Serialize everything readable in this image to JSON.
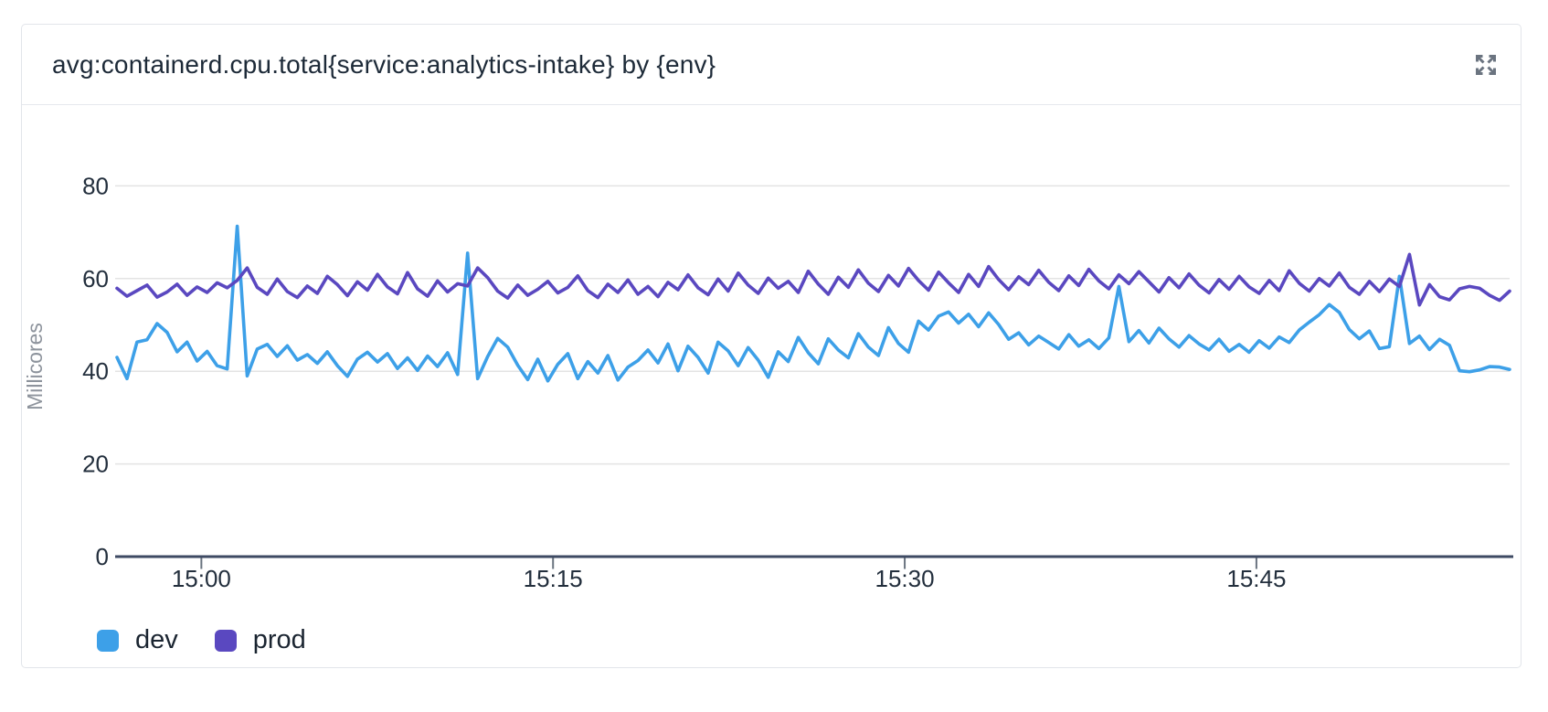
{
  "widget": {
    "title": "avg:containerd.cpu.total{service:analytics-intake} by {env}",
    "expand_icon": "expand-arrows-icon"
  },
  "colors": {
    "background": "#ffffff",
    "card_border": "#e2e5ea",
    "axis_line": "#3e4a63",
    "gridline": "#e3e3e3",
    "tick_mark": "#6a7480",
    "tick_text": "#232f3d",
    "muted_text": "#8d939c",
    "title_text": "#1d2a38",
    "icon": "#6b7480",
    "dev_blue": "#3da0e8",
    "prod_purple": "#5a48c0"
  },
  "chart_data": {
    "type": "line",
    "title": "avg:containerd.cpu.total{service:analytics-intake} by {env}",
    "xlabel": "",
    "ylabel": "Millicores",
    "ylim": [
      0,
      88
    ],
    "y_ticks": [
      0,
      20,
      40,
      60,
      80
    ],
    "x_range_minutes": [
      -3.6,
      55.8
    ],
    "x_ticks": [
      {
        "minute": 0,
        "label": "15:00"
      },
      {
        "minute": 15,
        "label": "15:15"
      },
      {
        "minute": 30,
        "label": "15:30"
      },
      {
        "minute": 45,
        "label": "15:45"
      }
    ],
    "grid": true,
    "legend_position": "bottom",
    "series": [
      {
        "name": "dev",
        "color": "#3da0e8",
        "values": [
          43.0,
          38.4,
          46.3,
          46.8,
          50.3,
          48.4,
          44.2,
          46.3,
          42.2,
          44.3,
          41.2,
          40.5,
          71.3,
          39.0,
          44.8,
          45.8,
          43.2,
          45.5,
          42.4,
          43.6,
          41.7,
          44.2,
          41.2,
          38.9,
          42.6,
          44.1,
          42.0,
          43.8,
          40.6,
          42.9,
          40.2,
          43.3,
          41.0,
          44.0,
          39.3,
          65.5,
          38.4,
          43.2,
          47.1,
          45.2,
          41.3,
          38.2,
          42.6,
          37.9,
          41.5,
          43.8,
          38.4,
          42.1,
          39.6,
          43.4,
          38.1,
          40.9,
          42.3,
          44.6,
          41.8,
          45.9,
          40.1,
          45.4,
          43.0,
          39.6,
          46.3,
          44.4,
          41.2,
          45.1,
          42.4,
          38.7,
          44.2,
          42.1,
          47.3,
          44.0,
          41.6,
          47.0,
          44.6,
          42.9,
          48.1,
          45.2,
          43.4,
          49.4,
          46.0,
          44.1,
          50.8,
          48.9,
          51.9,
          52.8,
          50.4,
          52.3,
          49.6,
          52.6,
          50.1,
          46.9,
          48.3,
          45.7,
          47.6,
          46.2,
          44.8,
          47.9,
          45.4,
          46.8,
          44.9,
          47.2,
          58.3,
          46.4,
          48.8,
          46.1,
          49.3,
          47.0,
          45.2,
          47.7,
          45.9,
          44.6,
          46.9,
          44.3,
          45.8,
          44.1,
          46.6,
          45.0,
          47.4,
          46.2,
          48.9,
          50.6,
          52.2,
          54.4,
          52.7,
          49.0,
          47.0,
          48.7,
          44.9,
          45.3,
          60.5,
          46.0,
          47.6,
          44.7,
          46.9,
          45.6,
          40.1,
          39.9,
          40.3,
          41.0,
          40.9,
          40.4
        ]
      },
      {
        "name": "prod",
        "color": "#5a48c0",
        "values": [
          57.9,
          56.2,
          57.4,
          58.6,
          56.0,
          57.1,
          58.8,
          56.4,
          58.2,
          57.0,
          59.1,
          58.0,
          59.6,
          62.3,
          58.1,
          56.6,
          59.9,
          57.2,
          55.9,
          58.4,
          56.8,
          60.5,
          58.7,
          56.3,
          59.3,
          57.5,
          60.9,
          58.2,
          56.7,
          61.3,
          57.8,
          56.2,
          59.5,
          57.1,
          58.9,
          58.4,
          62.3,
          60.2,
          57.3,
          55.8,
          58.6,
          56.4,
          57.7,
          59.4,
          56.9,
          58.1,
          60.6,
          57.4,
          55.9,
          58.8,
          57.0,
          59.7,
          56.6,
          58.3,
          56.1,
          59.2,
          57.6,
          60.8,
          58.0,
          56.5,
          59.9,
          57.3,
          61.2,
          58.6,
          56.8,
          60.1,
          57.9,
          59.4,
          57.0,
          61.6,
          58.8,
          56.6,
          60.3,
          58.1,
          61.9,
          59.0,
          57.2,
          60.7,
          58.4,
          62.2,
          59.6,
          57.5,
          61.4,
          59.1,
          57.0,
          60.9,
          58.3,
          62.6,
          59.8,
          57.6,
          60.4,
          58.7,
          61.8,
          59.2,
          57.4,
          60.6,
          58.5,
          62.0,
          59.5,
          57.8,
          60.8,
          58.9,
          61.5,
          59.3,
          57.1,
          60.2,
          58.0,
          61.0,
          58.6,
          56.9,
          59.8,
          57.7,
          60.5,
          58.2,
          56.8,
          59.6,
          57.4,
          61.7,
          59.0,
          57.3,
          60.0,
          58.4,
          61.2,
          58.1,
          56.6,
          59.4,
          57.2,
          59.9,
          58.3,
          65.2,
          54.3,
          58.7,
          56.1,
          55.4,
          57.8,
          58.3,
          57.9,
          56.4,
          55.3,
          57.3
        ]
      }
    ]
  }
}
